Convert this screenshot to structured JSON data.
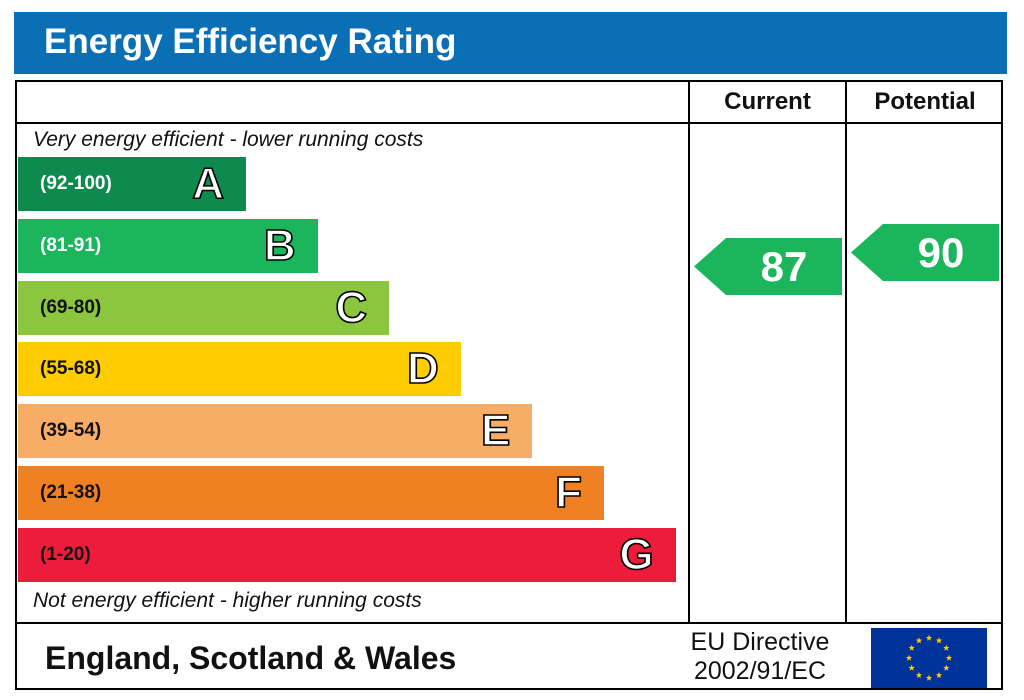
{
  "header": {
    "title": "Energy Efficiency Rating"
  },
  "columns": {
    "current": "Current",
    "potential": "Potential"
  },
  "captions": {
    "top": "Very energy efficient - lower running costs",
    "bottom": "Not energy efficient - higher running costs"
  },
  "footer": {
    "region": "England, Scotland & Wales",
    "directive_line1": "EU Directive",
    "directive_line2": "2002/91/EC"
  },
  "chart_data": {
    "type": "bar",
    "categories": [
      "A",
      "B",
      "C",
      "D",
      "E",
      "F",
      "G"
    ],
    "ranges": [
      "(92-100)",
      "(81-91)",
      "(69-80)",
      "(55-68)",
      "(39-54)",
      "(21-38)",
      "(1-20)"
    ],
    "range_bounds": [
      [
        92,
        100
      ],
      [
        81,
        91
      ],
      [
        69,
        80
      ],
      [
        55,
        68
      ],
      [
        39,
        54
      ],
      [
        21,
        38
      ],
      [
        1,
        20
      ]
    ],
    "colors": [
      "#0e8a4f",
      "#1bb55c",
      "#8cc63f",
      "#ffcc00",
      "#f7ad66",
      "#f08123",
      "#ec1c3a"
    ],
    "ratings": {
      "current": 87,
      "potential": 90
    },
    "rating_color": "#1bb55c"
  },
  "flag": {
    "background": "#003399",
    "stars": "#ffcc00"
  }
}
